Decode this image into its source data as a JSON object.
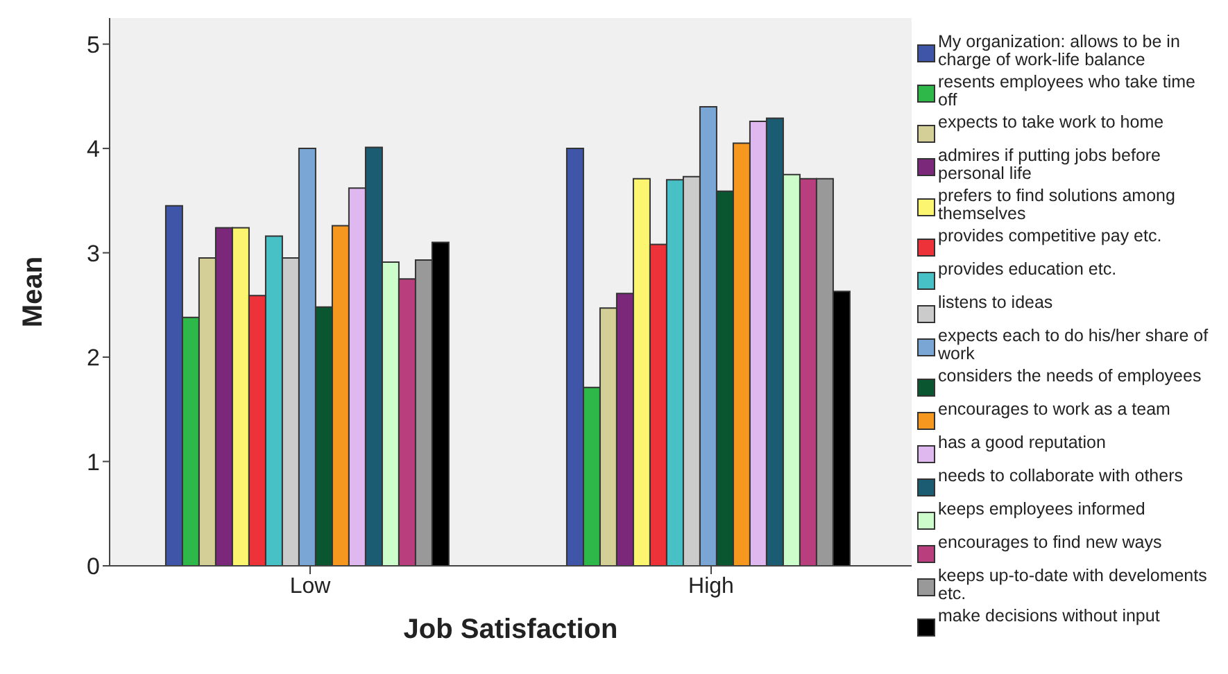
{
  "chart_data": {
    "type": "bar",
    "xlabel": "Job Satisfaction",
    "ylabel": "Mean",
    "categories": [
      "Low",
      "High"
    ],
    "ylim": [
      0,
      5.25
    ],
    "yticks": [
      0,
      1,
      2,
      3,
      4,
      5
    ],
    "grid": false,
    "legend": "right",
    "series": [
      {
        "name": "My organization: allows to be in charge of work-life balance",
        "color": "#3f56a8",
        "values": [
          3.45,
          4.0
        ]
      },
      {
        "name": "resents employees who take time off",
        "color": "#2eb84a",
        "values": [
          2.38,
          1.71
        ]
      },
      {
        "name": "expects to take work to home",
        "color": "#d3cf97",
        "values": [
          2.95,
          2.47
        ]
      },
      {
        "name": "admires if putting jobs before personal life",
        "color": "#7b287b",
        "values": [
          3.24,
          2.61
        ]
      },
      {
        "name": "prefers to find solutions among themselves",
        "color": "#fbf56f",
        "values": [
          3.24,
          3.71
        ]
      },
      {
        "name": "provides competitive pay etc.",
        "color": "#ee3239",
        "values": [
          2.59,
          3.08
        ]
      },
      {
        "name": "provides education etc.",
        "color": "#48c1c6",
        "values": [
          3.16,
          3.7
        ]
      },
      {
        "name": "listens to ideas",
        "color": "#cbcbcb",
        "values": [
          2.95,
          3.73
        ]
      },
      {
        "name": "expects each to do his/her share of work",
        "color": "#7aa6d6",
        "values": [
          4.0,
          4.4
        ]
      },
      {
        "name": "considers the needs of employees",
        "color": "#0a5630",
        "values": [
          2.48,
          3.59
        ]
      },
      {
        "name": "encourages to work as a team",
        "color": "#f6981f",
        "values": [
          3.26,
          4.05
        ]
      },
      {
        "name": "has a good reputation",
        "color": "#dfb8f0",
        "values": [
          3.62,
          4.26
        ]
      },
      {
        "name": "needs to collaborate with others",
        "color": "#1b5c73",
        "values": [
          4.01,
          4.29
        ]
      },
      {
        "name": "keeps employees informed",
        "color": "#ccfdcb",
        "values": [
          2.91,
          3.75
        ]
      },
      {
        "name": "encourages to find new ways",
        "color": "#b93e7d",
        "values": [
          2.75,
          3.71
        ]
      },
      {
        "name": "keeps up-to-date with develoments etc.",
        "color": "#999999",
        "values": [
          2.93,
          3.71
        ]
      },
      {
        "name": "make decisions without input",
        "color": "#000000",
        "values": [
          3.1,
          2.63
        ]
      }
    ]
  }
}
